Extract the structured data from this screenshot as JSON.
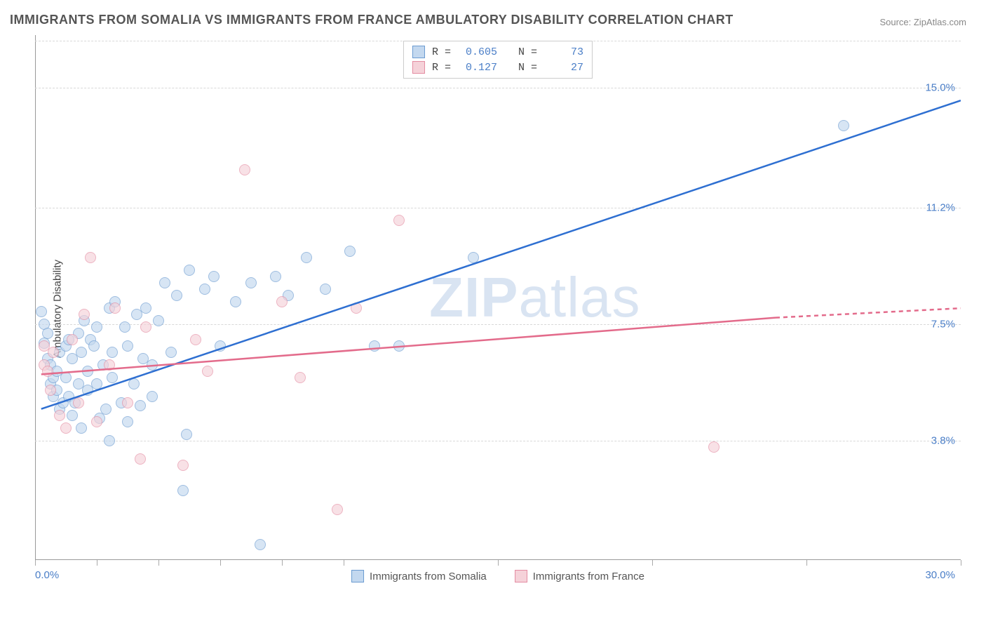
{
  "title": "IMMIGRANTS FROM SOMALIA VS IMMIGRANTS FROM FRANCE AMBULATORY DISABILITY CORRELATION CHART",
  "source": "Source: ZipAtlas.com",
  "ylabel": "Ambulatory Disability",
  "watermark_a": "ZIP",
  "watermark_b": "atlas",
  "chart": {
    "type": "scatter",
    "xlim": [
      0,
      30
    ],
    "ylim": [
      0,
      16.5
    ],
    "xticks": [
      0,
      2,
      4,
      6,
      8,
      10,
      15,
      20,
      25,
      30
    ],
    "yticks": [
      3.8,
      7.5,
      11.2,
      15.0
    ],
    "ytick_labels": [
      "3.8%",
      "7.5%",
      "11.2%",
      "15.0%"
    ],
    "x_min_label": "0.0%",
    "x_max_label": "30.0%",
    "grid_color": "#d8d8d8",
    "axis_color": "#999999",
    "background_color": "#ffffff"
  },
  "series": [
    {
      "key": "somalia",
      "label": "Immigrants from Somalia",
      "fill": "#c3d8ef",
      "stroke": "#6b9bd1",
      "line_color": "#2e6fd1",
      "R": "0.605",
      "N": "73",
      "trend": {
        "x1": 0.2,
        "y1": 4.8,
        "x2": 30,
        "y2": 14.6
      },
      "points": [
        [
          0.2,
          7.9
        ],
        [
          0.3,
          7.5
        ],
        [
          0.3,
          6.9
        ],
        [
          0.4,
          7.2
        ],
        [
          0.4,
          6.4
        ],
        [
          0.5,
          5.6
        ],
        [
          0.5,
          6.2
        ],
        [
          0.6,
          5.8
        ],
        [
          0.6,
          5.2
        ],
        [
          0.7,
          6.0
        ],
        [
          0.7,
          5.4
        ],
        [
          0.8,
          6.6
        ],
        [
          0.8,
          4.8
        ],
        [
          0.9,
          5.0
        ],
        [
          1.0,
          5.8
        ],
        [
          1.0,
          6.8
        ],
        [
          1.1,
          7.0
        ],
        [
          1.1,
          5.2
        ],
        [
          1.2,
          6.4
        ],
        [
          1.2,
          4.6
        ],
        [
          1.3,
          5.0
        ],
        [
          1.4,
          7.2
        ],
        [
          1.4,
          5.6
        ],
        [
          1.5,
          6.6
        ],
        [
          1.5,
          4.2
        ],
        [
          1.6,
          7.6
        ],
        [
          1.7,
          6.0
        ],
        [
          1.7,
          5.4
        ],
        [
          1.8,
          7.0
        ],
        [
          1.9,
          6.8
        ],
        [
          2.0,
          5.6
        ],
        [
          2.0,
          7.4
        ],
        [
          2.1,
          4.5
        ],
        [
          2.2,
          6.2
        ],
        [
          2.3,
          4.8
        ],
        [
          2.4,
          8.0
        ],
        [
          2.5,
          5.8
        ],
        [
          2.5,
          6.6
        ],
        [
          2.6,
          8.2
        ],
        [
          2.8,
          5.0
        ],
        [
          2.9,
          7.4
        ],
        [
          3.0,
          4.4
        ],
        [
          3.0,
          6.8
        ],
        [
          3.2,
          5.6
        ],
        [
          3.3,
          7.8
        ],
        [
          3.4,
          4.9
        ],
        [
          3.5,
          6.4
        ],
        [
          3.6,
          8.0
        ],
        [
          3.8,
          5.2
        ],
        [
          3.8,
          6.2
        ],
        [
          4.0,
          7.6
        ],
        [
          4.2,
          8.8
        ],
        [
          4.4,
          6.6
        ],
        [
          4.6,
          8.4
        ],
        [
          4.8,
          2.2
        ],
        [
          5.0,
          9.2
        ],
        [
          5.5,
          8.6
        ],
        [
          5.8,
          9.0
        ],
        [
          6.0,
          6.8
        ],
        [
          6.5,
          8.2
        ],
        [
          7.0,
          8.8
        ],
        [
          7.3,
          0.5
        ],
        [
          7.8,
          9.0
        ],
        [
          8.2,
          8.4
        ],
        [
          8.8,
          9.6
        ],
        [
          9.4,
          8.6
        ],
        [
          10.2,
          9.8
        ],
        [
          11.0,
          6.8
        ],
        [
          11.8,
          6.8
        ],
        [
          14.2,
          9.6
        ],
        [
          26.2,
          13.8
        ],
        [
          4.9,
          4.0
        ],
        [
          2.4,
          3.8
        ]
      ]
    },
    {
      "key": "france",
      "label": "Immigrants from France",
      "fill": "#f5d2d9",
      "stroke": "#e48ca2",
      "line_color": "#e36b8b",
      "R": "0.127",
      "N": "27",
      "trend": {
        "x1": 0.2,
        "y1": 5.9,
        "x2": 24,
        "y2": 7.7
      },
      "trend_dash": {
        "x1": 24,
        "y1": 7.7,
        "x2": 30,
        "y2": 8.0
      },
      "points": [
        [
          0.3,
          6.8
        ],
        [
          0.3,
          6.2
        ],
        [
          0.4,
          6.0
        ],
        [
          0.5,
          5.4
        ],
        [
          0.6,
          6.6
        ],
        [
          0.8,
          4.6
        ],
        [
          1.0,
          4.2
        ],
        [
          1.2,
          7.0
        ],
        [
          1.4,
          5.0
        ],
        [
          1.6,
          7.8
        ],
        [
          1.8,
          9.6
        ],
        [
          2.0,
          4.4
        ],
        [
          2.4,
          6.2
        ],
        [
          2.6,
          8.0
        ],
        [
          3.0,
          5.0
        ],
        [
          3.4,
          3.2
        ],
        [
          3.6,
          7.4
        ],
        [
          4.8,
          3.0
        ],
        [
          5.2,
          7.0
        ],
        [
          5.6,
          6.0
        ],
        [
          6.8,
          12.4
        ],
        [
          8.0,
          8.2
        ],
        [
          8.6,
          5.8
        ],
        [
          9.8,
          1.6
        ],
        [
          10.4,
          8.0
        ],
        [
          11.8,
          10.8
        ],
        [
          22.0,
          3.6
        ]
      ]
    }
  ],
  "top_legend": {
    "r_label": "R =",
    "n_label": "N ="
  }
}
